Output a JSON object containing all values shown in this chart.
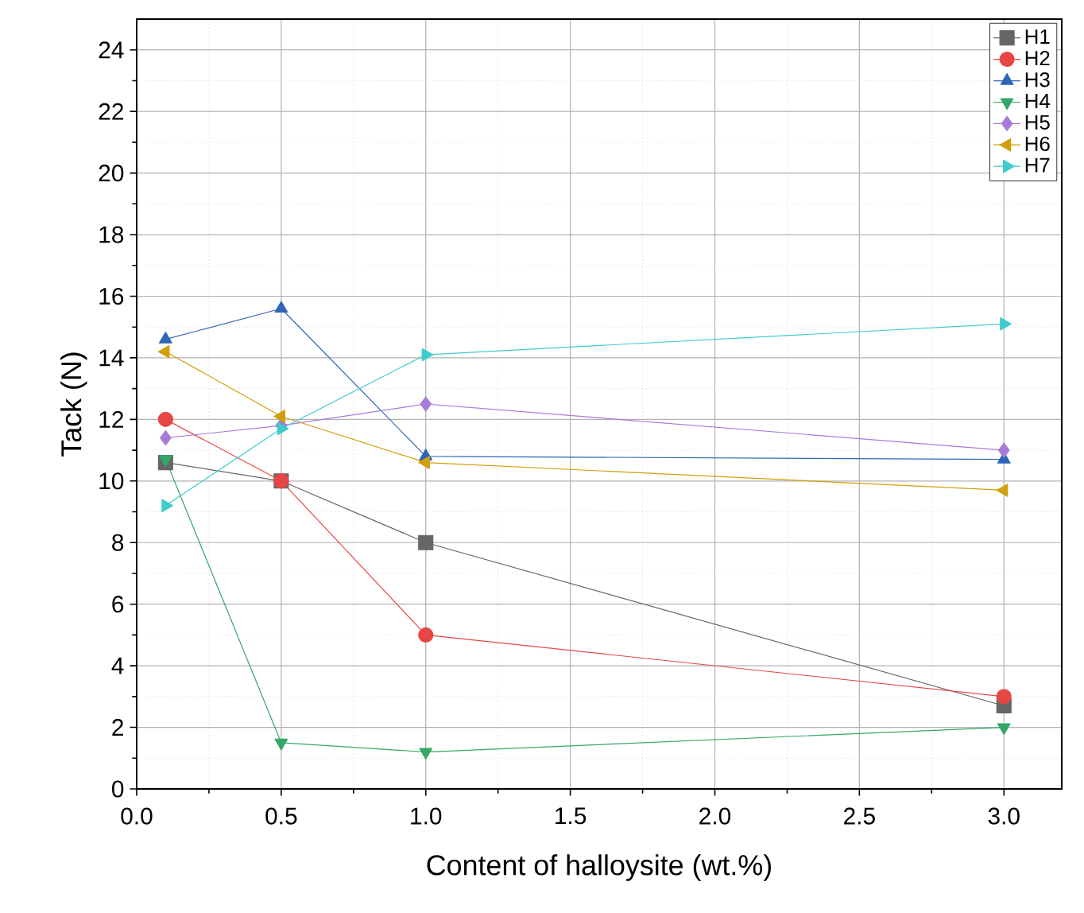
{
  "chart_data": {
    "type": "line",
    "xlabel": "Content of halloysite (wt.%)",
    "ylabel": "Tack (N)",
    "xlim": [
      0,
      3.2
    ],
    "ylim": [
      0,
      25
    ],
    "xticks": [
      {
        "value": 0,
        "label": "0.0"
      },
      {
        "value": 0.5,
        "label": "0.5"
      },
      {
        "value": 1,
        "label": "1.0"
      },
      {
        "value": 1.5,
        "label": "1.5"
      },
      {
        "value": 2,
        "label": "2.0"
      },
      {
        "value": 2.5,
        "label": "2.5"
      },
      {
        "value": 3,
        "label": "3.0"
      }
    ],
    "yticks": [
      0,
      2,
      4,
      6,
      8,
      10,
      12,
      14,
      16,
      18,
      20,
      22,
      24
    ],
    "grid": true,
    "legend": "top right",
    "line_style": "solid",
    "x": [
      0.1,
      0.5,
      1.0,
      3.0
    ],
    "series": [
      {
        "name": "H1",
        "color": "#666666",
        "marker": "square",
        "values": [
          10.6,
          10.0,
          8.0,
          2.7
        ]
      },
      {
        "name": "H2",
        "color": "#e84545",
        "marker": "circle",
        "values": [
          12.0,
          10.0,
          5.0,
          3.0
        ]
      },
      {
        "name": "H3",
        "color": "#2f66b5",
        "marker": "triangle",
        "values": [
          14.6,
          15.6,
          10.8,
          10.7
        ]
      },
      {
        "name": "H4",
        "color": "#33a866",
        "marker": "triangle_down",
        "values": [
          10.7,
          1.5,
          1.2,
          2.0
        ]
      },
      {
        "name": "H5",
        "color": "#a77bd6",
        "marker": "diamond",
        "values": [
          11.4,
          11.8,
          12.5,
          11.0
        ]
      },
      {
        "name": "H6",
        "color": "#d09f0c",
        "marker": "triangle_left",
        "values": [
          14.2,
          12.1,
          10.6,
          9.7
        ]
      },
      {
        "name": "H7",
        "color": "#3fcccc",
        "marker": "triangle_right",
        "values": [
          9.2,
          11.7,
          14.1,
          15.1
        ]
      }
    ]
  }
}
